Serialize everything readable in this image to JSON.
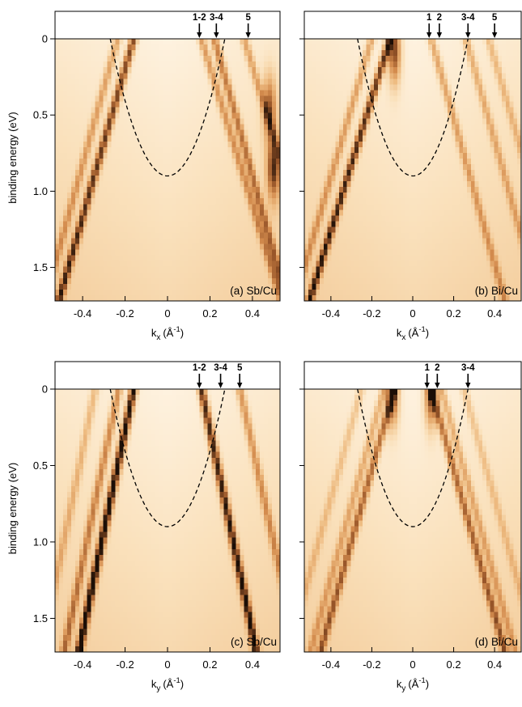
{
  "chart_data": [
    {
      "type": "heatmap",
      "label": "(a) Sb/Cu",
      "xlabel_main": "k",
      "xlabel_sub": "x",
      "xlabel_unit": "(Å",
      "xlabel_exp": "-1",
      "xlabel_close": ")",
      "ylabel": "binding energy (eV)",
      "xlim": [
        -0.53,
        0.53
      ],
      "ylim": [
        0,
        1.72
      ],
      "xticks": [
        "-0.4",
        "-0.2",
        "0",
        "0.2",
        "0.4"
      ],
      "xtick_values": [
        -0.4,
        -0.2,
        0,
        0.2,
        0.4
      ],
      "yticks": [
        "0",
        "0.5",
        "1.0",
        "1.5"
      ],
      "ytick_values": [
        0,
        0.5,
        1.0,
        1.5
      ],
      "parabola": {
        "vertex_energy": 0.9,
        "kf": 0.27
      },
      "markers": [
        {
          "label": "1-2",
          "k": 0.15
        },
        {
          "label": "3-4",
          "k": 0.23
        },
        {
          "label": "5",
          "k": 0.38
        }
      ],
      "bands": [
        {
          "k0": -0.16,
          "slope": 0.205,
          "intensity": 0.7
        },
        {
          "k0": -0.235,
          "slope": 0.2,
          "intensity": 0.35
        },
        {
          "k0": 0.16,
          "slope": 0.22,
          "intensity": 0.4
        },
        {
          "k0": 0.22,
          "slope": 0.2,
          "intensity": 0.5
        },
        {
          "k0": 0.36,
          "slope": 0.22,
          "intensity": 0.35
        }
      ],
      "hotspots": [
        {
          "k": 0.48,
          "e": 0.45,
          "intensity": 0.8
        },
        {
          "k": 0.5,
          "e": 0.85,
          "intensity": 1.0
        }
      ]
    },
    {
      "type": "heatmap",
      "label": "(b) Bi/Cu",
      "xlabel_main": "k",
      "xlabel_sub": "x",
      "xlabel_unit": "(Å",
      "xlabel_exp": "-1",
      "xlabel_close": ")",
      "ylabel": "",
      "xlim": [
        -0.53,
        0.53
      ],
      "ylim": [
        0,
        1.72
      ],
      "xticks": [
        "-0.4",
        "-0.2",
        "0",
        "0.2",
        "0.4"
      ],
      "xtick_values": [
        -0.4,
        -0.2,
        0,
        0.2,
        0.4
      ],
      "yticks": [
        "",
        "",
        "",
        ""
      ],
      "ytick_values": [
        0,
        0.5,
        1.0,
        1.5
      ],
      "parabola": {
        "vertex_energy": 0.9,
        "kf": 0.27
      },
      "markers": [
        {
          "label": "1",
          "k": 0.08
        },
        {
          "label": "2",
          "k": 0.13
        },
        {
          "label": "3-4",
          "k": 0.27
        },
        {
          "label": "5",
          "k": 0.4
        }
      ],
      "bands": [
        {
          "k0": -0.11,
          "slope": 0.23,
          "intensity": 0.75
        },
        {
          "k0": -0.2,
          "slope": 0.22,
          "intensity": 0.35
        },
        {
          "k0": 0.09,
          "slope": 0.21,
          "intensity": 0.35
        },
        {
          "k0": 0.26,
          "slope": 0.21,
          "intensity": 0.3
        },
        {
          "k0": 0.37,
          "slope": 0.22,
          "intensity": 0.25
        }
      ],
      "hotspots": [
        {
          "k": -0.09,
          "e": 0.08,
          "intensity": 1.0
        }
      ]
    },
    {
      "type": "heatmap",
      "label": "(c) Sb/Cu",
      "xlabel_main": "k",
      "xlabel_sub": "y",
      "xlabel_unit": "(Å",
      "xlabel_exp": "-1",
      "xlabel_close": ")",
      "ylabel": "binding energy (eV)",
      "xlim": [
        -0.53,
        0.53
      ],
      "ylim": [
        0,
        1.72
      ],
      "xticks": [
        "-0.4",
        "-0.2",
        "0",
        "0.2",
        "0.4"
      ],
      "xtick_values": [
        -0.4,
        -0.2,
        0,
        0.2,
        0.4
      ],
      "yticks": [
        "0",
        "0.5",
        "1.0",
        "1.5"
      ],
      "ytick_values": [
        0,
        0.5,
        1.0,
        1.5
      ],
      "parabola": {
        "vertex_energy": 0.9,
        "kf": 0.27
      },
      "markers": [
        {
          "label": "1-2",
          "k": 0.15
        },
        {
          "label": "3-4",
          "k": 0.25
        },
        {
          "label": "5",
          "k": 0.34
        }
      ],
      "bands": [
        {
          "k0": -0.16,
          "slope": 0.15,
          "intensity": 0.9
        },
        {
          "k0": -0.23,
          "slope": 0.15,
          "intensity": 0.45
        },
        {
          "k0": 0.16,
          "slope": 0.15,
          "intensity": 0.8
        },
        {
          "k0": 0.34,
          "slope": 0.16,
          "intensity": 0.4
        },
        {
          "k0": -0.34,
          "slope": 0.15,
          "intensity": 0.25
        }
      ],
      "hotspots": []
    },
    {
      "type": "heatmap",
      "label": "(d) Bi/Cu",
      "xlabel_main": "k",
      "xlabel_sub": "y",
      "xlabel_unit": "(Å",
      "xlabel_exp": "-1",
      "xlabel_close": ")",
      "ylabel": "",
      "xlim": [
        -0.53,
        0.53
      ],
      "ylim": [
        0,
        1.72
      ],
      "xticks": [
        "-0.4",
        "-0.2",
        "0",
        "0.2",
        "0.4"
      ],
      "xtick_values": [
        -0.4,
        -0.2,
        0,
        0.2,
        0.4
      ],
      "yticks": [
        "",
        "",
        "",
        ""
      ],
      "ytick_values": [
        0,
        0.5,
        1.0,
        1.5
      ],
      "parabola": {
        "vertex_energy": 0.9,
        "kf": 0.27
      },
      "markers": [
        {
          "label": "1",
          "k": 0.07
        },
        {
          "label": "2",
          "k": 0.12
        },
        {
          "label": "3-4",
          "k": 0.27
        }
      ],
      "bands": [
        {
          "k0": -0.09,
          "slope": 0.21,
          "intensity": 0.55
        },
        {
          "k0": 0.09,
          "slope": 0.21,
          "intensity": 0.55
        },
        {
          "k0": -0.14,
          "slope": 0.21,
          "intensity": 0.3
        },
        {
          "k0": 0.14,
          "slope": 0.21,
          "intensity": 0.3
        },
        {
          "k0": -0.25,
          "slope": 0.21,
          "intensity": 0.2
        },
        {
          "k0": 0.25,
          "slope": 0.21,
          "intensity": 0.2
        }
      ],
      "hotspots": [
        {
          "k": -0.1,
          "e": 0.03,
          "intensity": 1.0
        },
        {
          "k": 0.09,
          "e": 0.03,
          "intensity": 1.0
        }
      ]
    }
  ]
}
